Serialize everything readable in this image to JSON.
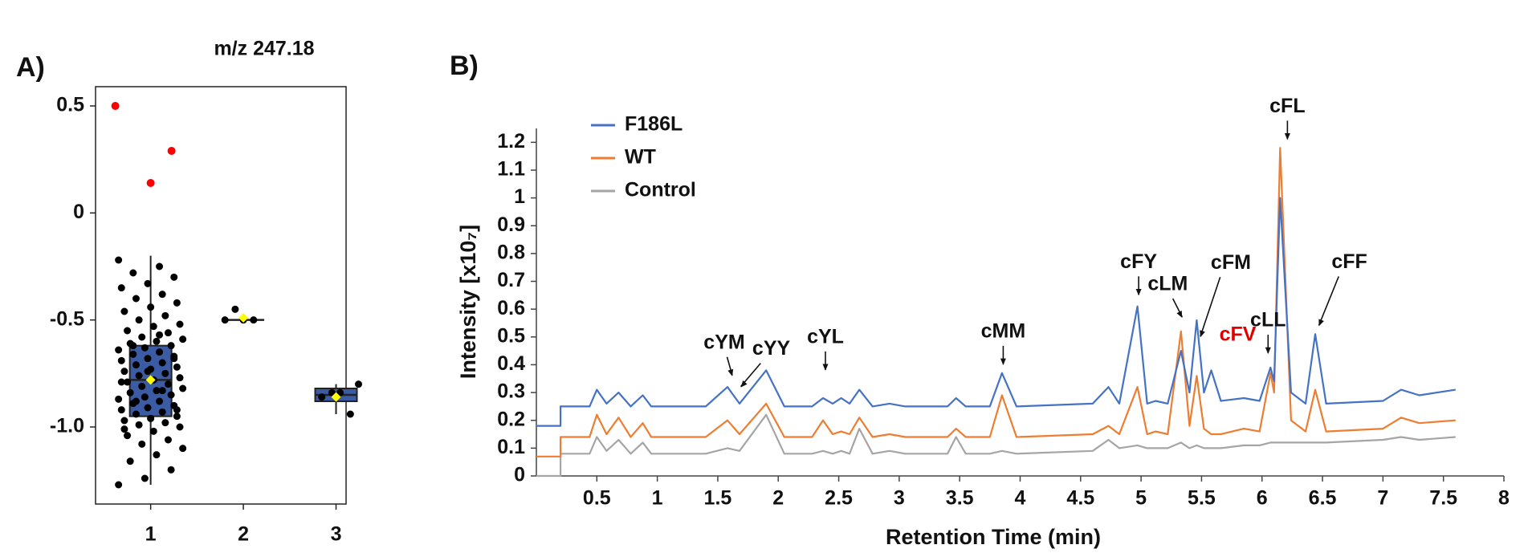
{
  "chart_data": [
    {
      "type": "box",
      "label": "A)",
      "title": "m/z 247.18",
      "categories": [
        "1",
        "2",
        "3"
      ],
      "ylim": [
        -1.36,
        0.59
      ],
      "yticks": [
        0.5,
        0,
        -0.5,
        {
          "value": -1,
          "label": "-1.0"
        }
      ],
      "box_color": "#3b5ba5",
      "mean_color": "#ffff00",
      "point_color": "#000000",
      "outlier_color": "#ff0000",
      "boxes": {
        "min": [
          -1.27,
          -0.5,
          -0.94
        ],
        "q1": [
          -0.95,
          -0.5,
          -0.88
        ],
        "median": [
          -0.78,
          -0.5,
          -0.85
        ],
        "q3": [
          -0.62,
          -0.5,
          -0.82
        ],
        "max": [
          -0.2,
          -0.5,
          -0.8
        ],
        "mean": [
          -0.78,
          -0.49,
          -0.86
        ]
      },
      "points": [
        [
          -0.22,
          -0.25,
          -0.28,
          -0.3,
          -0.33,
          -0.35,
          -0.38,
          -0.4,
          -0.42,
          -0.44,
          -0.46,
          -0.48,
          -0.5,
          -0.52,
          -0.53,
          -0.55,
          -0.56,
          -0.58,
          -0.59,
          -0.6,
          -0.61,
          -0.62,
          -0.63,
          -0.64,
          -0.65,
          -0.66,
          -0.67,
          -0.68,
          -0.69,
          -0.7,
          -0.71,
          -0.72,
          -0.73,
          -0.74,
          -0.75,
          -0.76,
          -0.77,
          -0.78,
          -0.79,
          -0.8,
          -0.81,
          -0.82,
          -0.83,
          -0.84,
          -0.85,
          -0.86,
          -0.87,
          -0.88,
          -0.89,
          -0.9,
          -0.91,
          -0.92,
          -0.93,
          -0.94,
          -0.95,
          -0.96,
          -0.97,
          -0.98,
          -0.99,
          -1.0,
          -1.02,
          -1.04,
          -1.06,
          -1.08,
          -1.1,
          -1.13,
          -1.16,
          -1.2,
          -1.24,
          -1.27,
          -0.57,
          -0.62,
          -0.68,
          -0.74,
          -0.79,
          -0.83,
          -0.88,
          -0.92,
          -0.96,
          -1.01
        ],
        [
          -0.5,
          -0.5,
          -0.5,
          -0.45
        ],
        [
          -0.8,
          -0.84,
          -0.86,
          -0.94,
          -0.84
        ]
      ],
      "outliers": [
        0.5,
        0.14,
        0.29
      ]
    },
    {
      "type": "line",
      "label": "B)",
      "xlabel": "Retention Time (min)",
      "ylabel": "Intensity  [x10₇]",
      "xlim": [
        0,
        8
      ],
      "ylim": [
        0,
        1.25
      ],
      "xticks": [
        0.5,
        1,
        1.5,
        2,
        2.5,
        3,
        3.5,
        4,
        4.5,
        5,
        5.5,
        6,
        6.5,
        7,
        7.5,
        8
      ],
      "yticks": [
        0,
        0.1,
        0.2,
        0.3,
        0.4,
        0.5,
        0.6,
        0.7,
        0.8,
        0.9,
        1,
        1.1,
        1.2
      ],
      "legend": "upper left",
      "x": [
        0,
        0.2,
        0.2,
        0.3,
        0.44,
        0.5,
        0.58,
        0.68,
        0.78,
        0.88,
        0.95,
        1.4,
        1.58,
        1.68,
        1.9,
        2.05,
        2.28,
        2.37,
        2.45,
        2.52,
        2.59,
        2.67,
        2.78,
        2.92,
        3.05,
        3.4,
        3.47,
        3.55,
        3.75,
        3.85,
        3.97,
        4.6,
        4.73,
        4.82,
        4.97,
        5.05,
        5.12,
        5.22,
        5.33,
        5.4,
        5.46,
        5.52,
        5.58,
        5.66,
        5.85,
        5.98,
        6.07,
        6.1,
        6.15,
        6.24,
        6.36,
        6.44,
        6.53,
        7.0,
        7.15,
        7.3,
        7.6
      ],
      "series": [
        {
          "name": "F186L",
          "color": "#4472c4",
          "values": [
            0.18,
            0.18,
            0.25,
            0.25,
            0.25,
            0.31,
            0.26,
            0.3,
            0.25,
            0.29,
            0.25,
            0.25,
            0.32,
            0.26,
            0.38,
            0.25,
            0.25,
            0.28,
            0.26,
            0.28,
            0.26,
            0.31,
            0.25,
            0.26,
            0.25,
            0.25,
            0.28,
            0.25,
            0.25,
            0.37,
            0.25,
            0.26,
            0.32,
            0.26,
            0.61,
            0.26,
            0.27,
            0.26,
            0.45,
            0.3,
            0.56,
            0.3,
            0.38,
            0.27,
            0.28,
            0.27,
            0.39,
            0.34,
            1.0,
            0.3,
            0.26,
            0.51,
            0.26,
            0.27,
            0.31,
            0.29,
            0.31
          ]
        },
        {
          "name": "WT",
          "color": "#ed7d31",
          "values": [
            0.07,
            0.07,
            0.14,
            0.14,
            0.14,
            0.22,
            0.15,
            0.21,
            0.14,
            0.19,
            0.14,
            0.14,
            0.2,
            0.15,
            0.26,
            0.14,
            0.14,
            0.2,
            0.15,
            0.16,
            0.15,
            0.21,
            0.14,
            0.15,
            0.14,
            0.14,
            0.17,
            0.14,
            0.14,
            0.29,
            0.14,
            0.15,
            0.18,
            0.15,
            0.32,
            0.15,
            0.16,
            0.15,
            0.52,
            0.18,
            0.36,
            0.17,
            0.15,
            0.15,
            0.17,
            0.16,
            0.37,
            0.3,
            1.18,
            0.2,
            0.16,
            0.31,
            0.16,
            0.17,
            0.21,
            0.19,
            0.2
          ]
        },
        {
          "name": "Control",
          "color": "#a5a5a5",
          "values": [
            0,
            0,
            0.08,
            0.08,
            0.08,
            0.14,
            0.09,
            0.13,
            0.08,
            0.12,
            0.08,
            0.08,
            0.1,
            0.09,
            0.22,
            0.08,
            0.08,
            0.09,
            0.08,
            0.09,
            0.08,
            0.17,
            0.08,
            0.09,
            0.08,
            0.08,
            0.14,
            0.08,
            0.08,
            0.09,
            0.08,
            0.09,
            0.13,
            0.1,
            0.11,
            0.1,
            0.1,
            0.1,
            0.12,
            0.1,
            0.11,
            0.1,
            0.1,
            0.1,
            0.11,
            0.11,
            0.12,
            0.12,
            0.12,
            0.12,
            0.12,
            0.12,
            0.12,
            0.13,
            0.14,
            0.13,
            0.14
          ]
        }
      ],
      "annotations": [
        {
          "text": "cYM",
          "x": 1.62,
          "y": 0.35
        },
        {
          "text": "cYY",
          "x": 1.69,
          "y": 0.31
        },
        {
          "text": "cYL",
          "x": 2.39,
          "y": 0.37
        },
        {
          "text": "cMM",
          "x": 3.86,
          "y": 0.39
        },
        {
          "text": "cFY",
          "x": 4.98,
          "y": 0.64
        },
        {
          "text": "cLM",
          "x": 5.34,
          "y": 0.56
        },
        {
          "text": "cFM",
          "x": 5.49,
          "y": 0.49
        },
        {
          "text": "cFV",
          "x": 5.6,
          "y": 0.39,
          "color": "#e00000"
        },
        {
          "text": "cLL",
          "x": 6.05,
          "y": 0.43
        },
        {
          "text": "cFL",
          "x": 6.21,
          "y": 1.2
        },
        {
          "text": "cFF",
          "x": 6.47,
          "y": 0.53
        }
      ]
    }
  ]
}
